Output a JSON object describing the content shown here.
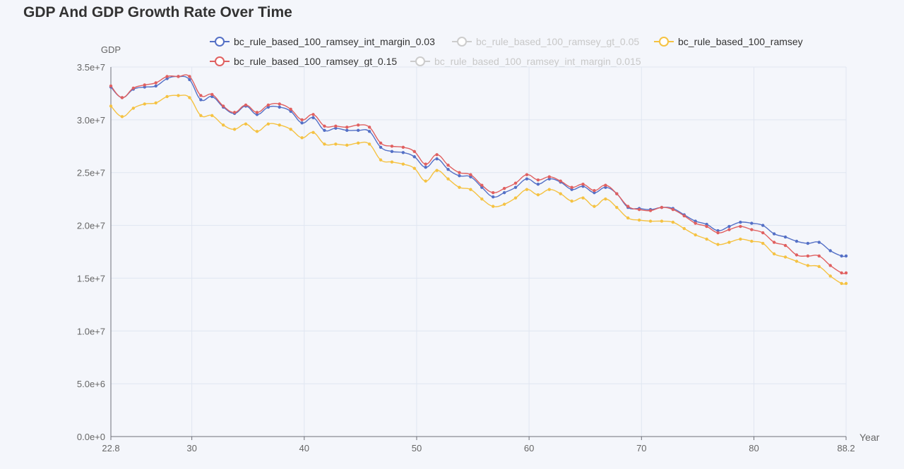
{
  "title": "GDP And GDP Growth Rate Over Time",
  "legend": [
    {
      "name": "bc_rule_based_100_ramsey_int_margin_0.03",
      "color": "#5470c6",
      "active": true
    },
    {
      "name": "bc_rule_based_100_ramsey_gt_0.05",
      "color": "#cccccc",
      "active": false
    },
    {
      "name": "bc_rule_based_100_ramsey",
      "color": "#f5c242",
      "active": true
    },
    {
      "name": "bc_rule_based_100_ramsey_gt_0.15",
      "color": "#e06060",
      "active": true
    },
    {
      "name": "bc_rule_based_100_ramsey_int_margin_0.015",
      "color": "#cccccc",
      "active": false
    }
  ],
  "chart_data": {
    "type": "line",
    "ylabel": "GDP",
    "xlabel": "Year",
    "xlim": [
      22.8,
      88.2
    ],
    "ylim": [
      0,
      35000000
    ],
    "x_ticks": [
      "22.8",
      "30",
      "40",
      "50",
      "60",
      "70",
      "80",
      "88.2"
    ],
    "y_ticks": [
      "0.0e+0",
      "5.0e+6",
      "1.0e+7",
      "1.5e+7",
      "2.0e+7",
      "2.5e+7",
      "3.0e+7",
      "3.5e+7"
    ],
    "x": [
      22.8,
      23.8,
      24.8,
      25.8,
      26.8,
      27.8,
      28.8,
      29.8,
      30.8,
      31.8,
      32.8,
      33.8,
      34.8,
      35.8,
      36.8,
      37.8,
      38.8,
      39.8,
      40.8,
      41.8,
      42.8,
      43.8,
      44.8,
      45.8,
      46.8,
      47.8,
      48.8,
      49.8,
      50.8,
      51.8,
      52.8,
      53.8,
      54.8,
      55.8,
      56.8,
      57.8,
      58.8,
      59.8,
      60.8,
      61.8,
      62.8,
      63.8,
      64.8,
      65.8,
      66.8,
      67.8,
      68.8,
      69.8,
      70.8,
      71.8,
      72.8,
      73.8,
      74.8,
      75.8,
      76.8,
      77.8,
      78.8,
      79.8,
      80.8,
      81.8,
      82.8,
      83.8,
      84.8,
      85.8,
      86.8,
      87.8,
      88.2
    ],
    "series": [
      {
        "name": "bc_rule_based_100_ramsey_int_margin_0.03",
        "color": "#5470c6",
        "values": [
          33100000,
          32100000,
          32900000,
          33100000,
          33200000,
          33900000,
          34100000,
          33800000,
          31900000,
          32200000,
          31200000,
          30600000,
          31300000,
          30500000,
          31200000,
          31200000,
          30800000,
          29700000,
          30200000,
          29000000,
          29200000,
          29000000,
          29000000,
          28900000,
          27400000,
          27000000,
          26900000,
          26500000,
          25500000,
          26300000,
          25300000,
          24700000,
          24600000,
          23600000,
          22700000,
          23100000,
          23600000,
          24400000,
          23900000,
          24400000,
          24100000,
          23400000,
          23700000,
          23100000,
          23600000,
          23000000,
          21700000,
          21600000,
          21500000,
          21700000,
          21600000,
          21000000,
          20400000,
          20100000,
          19500000,
          19900000,
          20300000,
          20200000,
          20000000,
          19200000,
          18900000,
          18500000,
          18300000,
          18400000,
          17600000,
          17100000,
          17100000
        ]
      },
      {
        "name": "bc_rule_based_100_ramsey",
        "color": "#f5c242",
        "values": [
          31300000,
          30300000,
          31100000,
          31500000,
          31600000,
          32200000,
          32300000,
          32100000,
          30400000,
          30400000,
          29500000,
          29100000,
          29600000,
          28900000,
          29600000,
          29500000,
          29100000,
          28300000,
          28800000,
          27700000,
          27700000,
          27600000,
          27800000,
          27700000,
          26200000,
          26000000,
          25800000,
          25400000,
          24200000,
          25200000,
          24400000,
          23600000,
          23400000,
          22500000,
          21800000,
          22000000,
          22600000,
          23400000,
          22900000,
          23400000,
          23000000,
          22300000,
          22600000,
          21800000,
          22500000,
          21700000,
          20700000,
          20500000,
          20400000,
          20400000,
          20300000,
          19700000,
          19100000,
          18700000,
          18200000,
          18400000,
          18700000,
          18500000,
          18300000,
          17300000,
          17000000,
          16600000,
          16200000,
          16100000,
          15200000,
          14500000,
          14500000
        ]
      },
      {
        "name": "bc_rule_based_100_ramsey_gt_0.15",
        "color": "#e06060",
        "values": [
          33200000,
          32100000,
          33000000,
          33300000,
          33500000,
          34100000,
          34100000,
          34100000,
          32300000,
          32400000,
          31300000,
          30700000,
          31400000,
          30700000,
          31400000,
          31500000,
          31000000,
          30000000,
          30500000,
          29400000,
          29400000,
          29300000,
          29500000,
          29300000,
          27800000,
          27500000,
          27400000,
          27000000,
          25800000,
          26700000,
          25700000,
          25000000,
          24800000,
          23800000,
          23100000,
          23500000,
          24000000,
          24800000,
          24300000,
          24600000,
          24200000,
          23600000,
          23900000,
          23300000,
          23800000,
          23000000,
          21800000,
          21500000,
          21400000,
          21700000,
          21500000,
          20900000,
          20200000,
          19900000,
          19300000,
          19600000,
          19900000,
          19600000,
          19300000,
          18400000,
          18100000,
          17200000,
          17100000,
          17100000,
          16200000,
          15500000,
          15500000
        ]
      }
    ]
  }
}
